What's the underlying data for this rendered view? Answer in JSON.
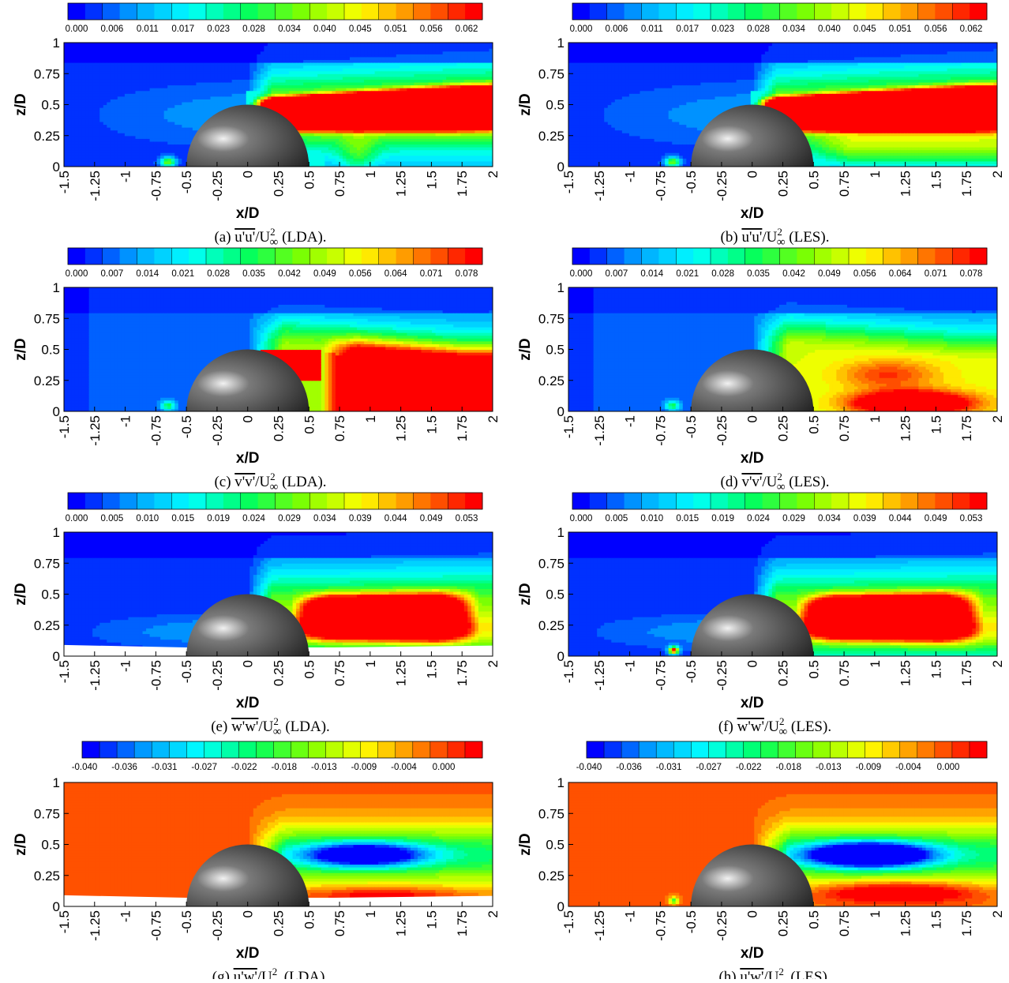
{
  "chart_data": [
    {
      "id": "a",
      "type": "heatmap",
      "quantity": "uu",
      "method": "LDA",
      "caption": {
        "label": "(a)",
        "sym": "u'u'",
        "method": "(LDA)."
      },
      "colorbar": {
        "ticks": [
          "0.000",
          "0.006",
          "0.011",
          "0.017",
          "0.023",
          "0.028",
          "0.034",
          "0.040",
          "0.045",
          "0.051",
          "0.056",
          "0.062"
        ],
        "levels": 24
      },
      "xlabel": "x/D",
      "ylabel": "z/D",
      "xticks": [
        "-1.5",
        "-1.25",
        "-1",
        "-0.75",
        "-0.5",
        "-0.25",
        "0",
        "0.25",
        "0.5",
        "0.75",
        "1",
        "1.25",
        "1.5",
        "1.75",
        "2"
      ],
      "yticks": [
        "0",
        "0.25",
        "0.5",
        "0.75",
        "1"
      ],
      "xlim": [
        -1.5,
        2
      ],
      "ylim": [
        0,
        1
      ],
      "background_level": 0.03
    },
    {
      "id": "b",
      "type": "heatmap",
      "quantity": "uu",
      "method": "LES",
      "caption": {
        "label": "(b)",
        "sym": "u'u'",
        "method": "(LES)."
      },
      "colorbar": {
        "ticks": [
          "0.000",
          "0.006",
          "0.011",
          "0.017",
          "0.023",
          "0.028",
          "0.034",
          "0.040",
          "0.045",
          "0.051",
          "0.056",
          "0.062"
        ],
        "levels": 24
      },
      "xlabel": "x/D",
      "ylabel": "z/D",
      "xticks": [
        "-1.5",
        "-1.25",
        "-1",
        "-0.75",
        "-0.5",
        "-0.25",
        "0",
        "0.25",
        "0.5",
        "0.75",
        "1",
        "1.25",
        "1.5",
        "1.75",
        "2"
      ],
      "yticks": [
        "0",
        "0.25",
        "0.5",
        "0.75",
        "1"
      ],
      "xlim": [
        -1.5,
        2
      ],
      "ylim": [
        0,
        1
      ],
      "background_level": 0.03
    },
    {
      "id": "c",
      "type": "heatmap",
      "quantity": "vv",
      "method": "LDA",
      "caption": {
        "label": "(c)",
        "sym": "v'v'",
        "method": "(LDA)."
      },
      "colorbar": {
        "ticks": [
          "0.000",
          "0.007",
          "0.014",
          "0.021",
          "0.028",
          "0.035",
          "0.042",
          "0.049",
          "0.056",
          "0.064",
          "0.071",
          "0.078"
        ],
        "levels": 24
      },
      "xlabel": "x/D",
      "ylabel": "z/D",
      "xticks": [
        "-1.5",
        "-1.25",
        "-1",
        "-0.75",
        "-0.5",
        "-0.25",
        "0",
        "0.25",
        "0.5",
        "0.75",
        "1",
        "1.25",
        "1.5",
        "1.75",
        "2"
      ],
      "yticks": [
        "0",
        "0.25",
        "0.5",
        "0.75",
        "1"
      ],
      "xlim": [
        -1.5,
        2
      ],
      "ylim": [
        0,
        1
      ],
      "background_level": 0.03
    },
    {
      "id": "d",
      "type": "heatmap",
      "quantity": "vv",
      "method": "LES",
      "caption": {
        "label": "(d)",
        "sym": "v'v'",
        "method": "(LES)."
      },
      "colorbar": {
        "ticks": [
          "0.000",
          "0.007",
          "0.014",
          "0.021",
          "0.028",
          "0.035",
          "0.042",
          "0.049",
          "0.056",
          "0.064",
          "0.071",
          "0.078"
        ],
        "levels": 24
      },
      "xlabel": "x/D",
      "ylabel": "z/D",
      "xticks": [
        "-1.5",
        "-1.25",
        "-1",
        "-0.75",
        "-0.5",
        "-0.25",
        "0",
        "0.25",
        "0.5",
        "0.75",
        "1",
        "1.25",
        "1.5",
        "1.75",
        "2"
      ],
      "yticks": [
        "0",
        "0.25",
        "0.5",
        "0.75",
        "1"
      ],
      "xlim": [
        -1.5,
        2
      ],
      "ylim": [
        0,
        1
      ],
      "background_level": 0.03
    },
    {
      "id": "e",
      "type": "heatmap",
      "quantity": "ww",
      "method": "LDA",
      "caption": {
        "label": "(e)",
        "sym": "w'w'",
        "method": "(LDA)."
      },
      "colorbar": {
        "ticks": [
          "0.000",
          "0.005",
          "0.010",
          "0.015",
          "0.019",
          "0.024",
          "0.029",
          "0.034",
          "0.039",
          "0.044",
          "0.049",
          "0.053"
        ],
        "levels": 24
      },
      "xlabel": "x/D",
      "ylabel": "z/D",
      "xticks": [
        "-1.5",
        "-1.25",
        "-1",
        "-0.75",
        "-0.5",
        "-0.25",
        "0",
        "0.25",
        "0.5",
        "0.75",
        "1",
        "1.25",
        "1.5",
        "1.75",
        "2"
      ],
      "yticks": [
        "0",
        "0.25",
        "0.5",
        "0.75",
        "1"
      ],
      "xlim": [
        -1.5,
        2
      ],
      "ylim": [
        0,
        1
      ],
      "background_level": 0.03
    },
    {
      "id": "f",
      "type": "heatmap",
      "quantity": "ww",
      "method": "LES",
      "caption": {
        "label": "(f)",
        "sym": "w'w'",
        "method": "(LES)."
      },
      "colorbar": {
        "ticks": [
          "0.000",
          "0.005",
          "0.010",
          "0.015",
          "0.019",
          "0.024",
          "0.029",
          "0.034",
          "0.039",
          "0.044",
          "0.049",
          "0.053"
        ],
        "levels": 24
      },
      "xlabel": "x/D",
      "ylabel": "z/D",
      "xticks": [
        "-1.5",
        "-1.25",
        "-1",
        "-0.75",
        "-0.5",
        "-0.25",
        "0",
        "0.25",
        "0.5",
        "0.75",
        "1",
        "1.25",
        "1.5",
        "1.75",
        "2"
      ],
      "yticks": [
        "0",
        "0.25",
        "0.5",
        "0.75",
        "1"
      ],
      "xlim": [
        -1.5,
        2
      ],
      "ylim": [
        0,
        1
      ],
      "background_level": 0.03
    },
    {
      "id": "g",
      "type": "heatmap",
      "quantity": "uw",
      "method": "LDA",
      "caption": {
        "label": "(g)",
        "sym": "u'w'",
        "method": "(LDA)."
      },
      "colorbar": {
        "ticks": [
          "-0.040",
          "-0.036",
          "-0.031",
          "-0.027",
          "-0.022",
          "-0.018",
          "-0.013",
          "-0.009",
          "-0.004",
          "0.000"
        ],
        "levels": 23
      },
      "xlabel": "x/D",
      "ylabel": "z/D",
      "xticks": [
        "-1.5",
        "-1.25",
        "-1",
        "-0.75",
        "-0.5",
        "-0.25",
        "0",
        "0.25",
        "0.5",
        "0.75",
        "1",
        "1.25",
        "1.5",
        "1.75",
        "2"
      ],
      "yticks": [
        "0",
        "0.25",
        "0.5",
        "0.75",
        "1"
      ],
      "xlim": [
        -1.5,
        2
      ],
      "ylim": [
        0,
        1
      ],
      "background_level": 0.88
    },
    {
      "id": "h",
      "type": "heatmap",
      "quantity": "uw",
      "method": "LES",
      "caption": {
        "label": "(h)",
        "sym": "u'w'",
        "method": "(LES)."
      },
      "colorbar": {
        "ticks": [
          "-0.040",
          "-0.036",
          "-0.031",
          "-0.027",
          "-0.022",
          "-0.018",
          "-0.013",
          "-0.009",
          "-0.004",
          "0.000"
        ],
        "levels": 23
      },
      "xlabel": "x/D",
      "ylabel": "z/D",
      "xticks": [
        "-1.5",
        "-1.25",
        "-1",
        "-0.75",
        "-0.5",
        "-0.25",
        "0",
        "0.25",
        "0.5",
        "0.75",
        "1",
        "1.25",
        "1.5",
        "1.75",
        "2"
      ],
      "yticks": [
        "0",
        "0.25",
        "0.5",
        "0.75",
        "1"
      ],
      "xlim": [
        -1.5,
        2
      ],
      "ylim": [
        0,
        1
      ],
      "background_level": 0.88
    }
  ],
  "caption_common": {
    "over": "U",
    "sub": "∞",
    "sup": "2"
  },
  "colors": {
    "jet": [
      "#0000ff",
      "#00a0ff",
      "#00ffff",
      "#00ff60",
      "#80ff00",
      "#ffff00",
      "#ff8000",
      "#ff0000"
    ],
    "hemisphere_light": "#f2f2f2",
    "hemisphere_mid": "#7a7a7a",
    "hemisphere_dark": "#1e1e1e"
  }
}
